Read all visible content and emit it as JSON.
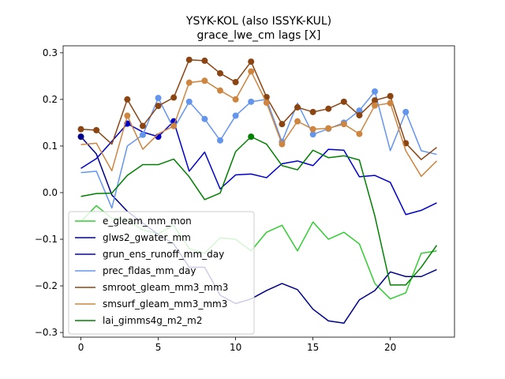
{
  "chart_data": {
    "type": "line",
    "title": "YSYK-KOL (also ISSYK-KUL)",
    "subtitle": "grace_lwe_cm lags [X]",
    "xlabel": "",
    "ylabel": "",
    "xlim": [
      -1.15,
      24.15
    ],
    "ylim": [
      -0.31,
      0.315
    ],
    "xticks": [
      0,
      5,
      10,
      15,
      20
    ],
    "yticks": [
      -0.3,
      -0.2,
      -0.1,
      0.0,
      0.1,
      0.2,
      0.3
    ],
    "xtick_labels": [
      "0",
      "5",
      "10",
      "15",
      "20"
    ],
    "ytick_labels": [
      "−0.3",
      "−0.2",
      "−0.1",
      "0.0",
      "0.1",
      "0.2",
      "0.3"
    ],
    "grid": false,
    "legend_position": "lower-left",
    "x": [
      0,
      1,
      2,
      3,
      4,
      5,
      6,
      7,
      8,
      9,
      10,
      11,
      12,
      13,
      14,
      15,
      16,
      17,
      18,
      19,
      20,
      21,
      22,
      23
    ],
    "series": [
      {
        "name": "e_gleam_mm_mon",
        "color": "#32cd32",
        "values": [
          -0.062,
          -0.028,
          -0.055,
          -0.058,
          -0.08,
          -0.088,
          -0.07,
          -0.12,
          -0.13,
          -0.097,
          -0.1,
          -0.125,
          -0.085,
          -0.07,
          -0.125,
          -0.063,
          -0.1,
          -0.085,
          -0.11,
          -0.195,
          -0.228,
          -0.215,
          -0.13,
          -0.125
        ],
        "markers": []
      },
      {
        "name": "glws2_gwater_mm",
        "color": "#00008b",
        "values": [
          0.12,
          0.083,
          -0.005,
          -0.04,
          -0.065,
          -0.09,
          -0.11,
          -0.16,
          -0.16,
          -0.22,
          -0.238,
          -0.228,
          -0.21,
          -0.195,
          -0.208,
          -0.25,
          -0.275,
          -0.28,
          -0.23,
          -0.21,
          -0.17,
          -0.18,
          -0.18,
          -0.165
        ],
        "markers": [
          0
        ]
      },
      {
        "name": "grun_ens_runoff_mm_day",
        "color": "#0000cd",
        "values": [
          0.052,
          0.073,
          0.11,
          0.148,
          0.13,
          0.12,
          0.153,
          0.046,
          0.087,
          0.008,
          0.038,
          0.04,
          0.032,
          0.062,
          0.068,
          0.058,
          0.093,
          0.091,
          0.034,
          0.037,
          0.022,
          -0.047,
          -0.038,
          -0.022
        ],
        "markers": [
          3,
          5,
          6
        ]
      },
      {
        "name": "prec_fldas_mm_day",
        "color": "#6495ed",
        "values": [
          0.043,
          0.046,
          -0.033,
          0.1,
          0.124,
          0.203,
          0.137,
          0.195,
          0.158,
          0.112,
          0.165,
          0.195,
          0.2,
          0.109,
          0.192,
          0.125,
          0.137,
          0.15,
          0.176,
          0.217,
          0.09,
          0.173,
          0.09,
          0.082
        ],
        "markers": [
          4,
          5,
          7,
          8,
          9,
          10,
          11,
          13,
          15,
          16,
          17,
          18,
          19,
          21
        ]
      },
      {
        "name": "smroot_gleam_mm3_mm3",
        "color": "#8b4513",
        "values": [
          0.136,
          0.134,
          0.104,
          0.2,
          0.143,
          0.186,
          0.204,
          0.285,
          0.283,
          0.256,
          0.237,
          0.281,
          0.205,
          0.147,
          0.183,
          0.173,
          0.18,
          0.195,
          0.166,
          0.198,
          0.207,
          0.106,
          0.071,
          0.097
        ],
        "markers": [
          0,
          1,
          3,
          4,
          5,
          6,
          7,
          8,
          9,
          10,
          11,
          12,
          13,
          14,
          15,
          16,
          17,
          18,
          19,
          20,
          21
        ]
      },
      {
        "name": "smsurf_gleam_mm3_mm3",
        "color": "#cd853f",
        "values": [
          0.103,
          0.106,
          0.047,
          0.165,
          0.093,
          0.126,
          0.143,
          0.236,
          0.24,
          0.219,
          0.2,
          0.26,
          0.193,
          0.104,
          0.153,
          0.136,
          0.138,
          0.147,
          0.126,
          0.187,
          0.192,
          0.09,
          0.035,
          0.068
        ],
        "markers": [
          3,
          6,
          7,
          8,
          9,
          10,
          11,
          12,
          13,
          14,
          15,
          16,
          17,
          18,
          19,
          20
        ]
      },
      {
        "name": "lai_gimms4g_m2_m2",
        "color": "#008000",
        "values": [
          -0.008,
          -0.002,
          -0.001,
          0.037,
          0.06,
          0.06,
          0.072,
          0.034,
          -0.015,
          -0.001,
          0.088,
          0.12,
          0.104,
          0.058,
          0.049,
          0.091,
          0.075,
          0.079,
          0.07,
          -0.05,
          -0.198,
          -0.198,
          -0.16,
          -0.113
        ],
        "markers": [
          11
        ]
      }
    ]
  }
}
